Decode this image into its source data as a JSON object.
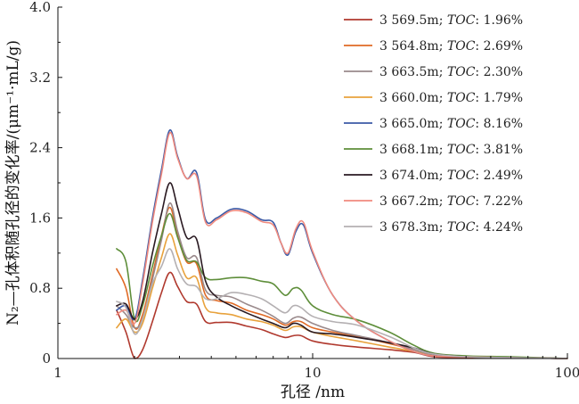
{
  "chart_data": {
    "type": "line",
    "title": "",
    "xlabel": "孔径 /nm",
    "ylabel": "N₂—孔体积随孔径的变化率/(μm⁻¹·mL/g)",
    "xscale": "log",
    "xlim": [
      1,
      100
    ],
    "ylim": [
      0,
      4.0
    ],
    "x_ticks": [
      1,
      10,
      100
    ],
    "x_tick_labels": [
      "1",
      "10",
      "100"
    ],
    "y_ticks": [
      0,
      0.8,
      1.6,
      2.4,
      3.2,
      4.0
    ],
    "y_tick_labels": [
      "0",
      "0.8",
      "1.6",
      "2.4",
      "3.2",
      "4.0"
    ],
    "grid": false,
    "legend_position": "top-right",
    "toc_label": "TOC",
    "series": [
      {
        "name": "3 569.5m; TOC: 1.96%",
        "depth": "3 569.5m;",
        "toc": ": 1.96%",
        "color": "#b0392e",
        "x": [
          1.7,
          1.85,
          2.0,
          2.15,
          2.35,
          2.55,
          2.75,
          2.95,
          3.2,
          3.5,
          3.8,
          4.2,
          4.8,
          5.5,
          6.3,
          7.0,
          7.8,
          8.4,
          9.0,
          10,
          12,
          15,
          20,
          25,
          30,
          40,
          60,
          100
        ],
        "y": [
          0.55,
          0.3,
          0.0,
          0.1,
          0.42,
          0.75,
          0.98,
          0.82,
          0.65,
          0.62,
          0.42,
          0.41,
          0.41,
          0.37,
          0.33,
          0.28,
          0.24,
          0.26,
          0.26,
          0.2,
          0.16,
          0.13,
          0.1,
          0.07,
          0.02,
          0.01,
          0.01,
          0.0
        ]
      },
      {
        "name": "3 564.8m; TOC: 2.69%",
        "depth": "3 564.8m;",
        "toc": ": 2.69%",
        "color": "#e06a25",
        "x": [
          1.7,
          1.85,
          2.0,
          2.15,
          2.35,
          2.55,
          2.75,
          2.95,
          3.2,
          3.5,
          3.8,
          4.2,
          4.8,
          5.5,
          6.3,
          7.0,
          7.8,
          8.4,
          9.0,
          10,
          12,
          15,
          20,
          25,
          30,
          40,
          60,
          100
        ],
        "y": [
          1.02,
          0.8,
          0.35,
          0.5,
          0.95,
          1.4,
          1.72,
          1.4,
          1.1,
          1.08,
          0.72,
          0.66,
          0.63,
          0.55,
          0.5,
          0.45,
          0.38,
          0.42,
          0.42,
          0.35,
          0.3,
          0.25,
          0.17,
          0.1,
          0.04,
          0.02,
          0.01,
          0.0
        ]
      },
      {
        "name": "3 663.5m; TOC: 2.30%",
        "depth": "3 663.5m;",
        "toc": ": 2.30%",
        "color": "#9a8a8c",
        "x": [
          1.7,
          1.85,
          2.0,
          2.15,
          2.35,
          2.55,
          2.75,
          2.95,
          3.2,
          3.5,
          3.8,
          4.2,
          4.8,
          5.5,
          6.3,
          7.0,
          7.8,
          8.4,
          9.0,
          10,
          12,
          15,
          20,
          25,
          30,
          40,
          60,
          100
        ],
        "y": [
          0.6,
          0.5,
          0.35,
          0.45,
          0.9,
          1.35,
          1.77,
          1.45,
          1.15,
          1.15,
          0.78,
          0.72,
          0.7,
          0.62,
          0.55,
          0.48,
          0.4,
          0.46,
          0.47,
          0.4,
          0.32,
          0.26,
          0.18,
          0.1,
          0.04,
          0.02,
          0.01,
          0.0
        ]
      },
      {
        "name": "3 660.0m; TOC: 1.79%",
        "depth": "3 660.0m;",
        "toc": ": 1.79%",
        "color": "#e8a23c",
        "x": [
          1.7,
          1.85,
          2.0,
          2.15,
          2.35,
          2.55,
          2.75,
          2.95,
          3.2,
          3.5,
          3.8,
          4.2,
          4.8,
          5.5,
          6.3,
          7.0,
          7.8,
          8.4,
          9.0,
          10,
          12,
          15,
          20,
          25,
          30,
          40,
          60,
          100
        ],
        "y": [
          0.35,
          0.45,
          0.3,
          0.4,
          0.8,
          1.15,
          1.42,
          1.18,
          0.92,
          0.92,
          0.58,
          0.52,
          0.5,
          0.45,
          0.42,
          0.38,
          0.32,
          0.36,
          0.36,
          0.3,
          0.25,
          0.2,
          0.13,
          0.08,
          0.03,
          0.02,
          0.01,
          0.0
        ]
      },
      {
        "name": "3 665.0m; TOC: 8.16%",
        "depth": "3 665.0m;",
        "toc": ": 8.16%",
        "color": "#3b5aa6",
        "x": [
          1.7,
          1.85,
          2.0,
          2.15,
          2.35,
          2.55,
          2.75,
          2.95,
          3.2,
          3.5,
          3.8,
          4.2,
          4.8,
          5.5,
          6.3,
          7.0,
          7.5,
          8.0,
          8.6,
          9.2,
          10,
          12,
          15,
          20,
          25,
          30,
          40,
          60,
          100
        ],
        "y": [
          0.55,
          0.6,
          0.45,
          0.9,
          1.6,
          2.15,
          2.6,
          2.3,
          2.05,
          2.12,
          1.58,
          1.6,
          1.7,
          1.68,
          1.58,
          1.55,
          1.32,
          1.18,
          1.45,
          1.52,
          1.2,
          0.72,
          0.42,
          0.2,
          0.08,
          0.03,
          0.02,
          0.01,
          0.0
        ]
      },
      {
        "name": "3 668.1m; TOC: 3.81%",
        "depth": "3 668.1m;",
        "toc": ": 3.81%",
        "color": "#5e8e3a",
        "x": [
          1.7,
          1.85,
          2.0,
          2.15,
          2.35,
          2.55,
          2.75,
          2.95,
          3.2,
          3.5,
          3.8,
          4.2,
          4.8,
          5.5,
          6.3,
          7.0,
          7.8,
          8.4,
          9.0,
          10,
          12,
          15,
          20,
          25,
          30,
          40,
          60,
          100
        ],
        "y": [
          1.25,
          1.1,
          0.45,
          0.6,
          1.05,
          1.4,
          1.65,
          1.38,
          1.12,
          1.1,
          0.92,
          0.9,
          0.92,
          0.92,
          0.88,
          0.85,
          0.72,
          0.8,
          0.78,
          0.6,
          0.5,
          0.44,
          0.3,
          0.15,
          0.06,
          0.03,
          0.02,
          0.0
        ]
      },
      {
        "name": "3 674.0m; TOC: 2.49%",
        "depth": "3 674.0m;",
        "toc": ": 2.49%",
        "color": "#2a1a22",
        "x": [
          1.7,
          1.85,
          2.0,
          2.15,
          2.35,
          2.55,
          2.75,
          2.95,
          3.2,
          3.5,
          3.8,
          4.2,
          4.8,
          5.5,
          6.3,
          7.0,
          7.8,
          8.4,
          9.0,
          10,
          12,
          15,
          20,
          25,
          30,
          40,
          60,
          100
        ],
        "y": [
          0.6,
          0.62,
          0.45,
          0.65,
          1.2,
          1.65,
          2.0,
          1.72,
          1.38,
          1.36,
          0.88,
          0.7,
          0.6,
          0.52,
          0.45,
          0.4,
          0.35,
          0.4,
          0.38,
          0.3,
          0.28,
          0.24,
          0.18,
          0.12,
          0.05,
          0.02,
          0.01,
          0.0
        ]
      },
      {
        "name": "3 667.2m; TOC: 7.22%",
        "depth": "3 667.2m;",
        "toc": ": 7.22%",
        "color": "#f08a7e",
        "x": [
          1.7,
          1.85,
          2.0,
          2.15,
          2.35,
          2.55,
          2.75,
          2.95,
          3.2,
          3.5,
          3.8,
          4.2,
          4.8,
          5.5,
          6.3,
          7.0,
          7.5,
          8.0,
          8.6,
          9.2,
          10,
          12,
          15,
          20,
          25,
          30,
          40,
          60,
          100
        ],
        "y": [
          0.5,
          0.55,
          0.4,
          0.85,
          1.55,
          2.1,
          2.57,
          2.28,
          2.05,
          2.08,
          1.55,
          1.58,
          1.68,
          1.66,
          1.56,
          1.52,
          1.32,
          1.2,
          1.48,
          1.55,
          1.22,
          0.72,
          0.42,
          0.2,
          0.08,
          0.03,
          0.02,
          0.01,
          0.0
        ]
      },
      {
        "name": "3 678.3m; TOC: 4.24%",
        "depth": "3 678.3m;",
        "toc": ": 4.24%",
        "color": "#b4b0b2",
        "x": [
          1.7,
          1.85,
          2.0,
          2.15,
          2.35,
          2.55,
          2.75,
          2.95,
          3.2,
          3.5,
          3.8,
          4.2,
          4.8,
          5.5,
          6.3,
          7.0,
          7.8,
          8.4,
          9.0,
          10,
          12,
          15,
          20,
          25,
          30,
          40,
          60,
          100
        ],
        "y": [
          0.65,
          0.58,
          0.28,
          0.45,
          0.85,
          1.05,
          1.25,
          1.02,
          0.85,
          0.82,
          0.68,
          0.68,
          0.75,
          0.73,
          0.68,
          0.6,
          0.52,
          0.6,
          0.58,
          0.48,
          0.42,
          0.38,
          0.25,
          0.12,
          0.05,
          0.02,
          0.01,
          0.0
        ]
      }
    ]
  }
}
